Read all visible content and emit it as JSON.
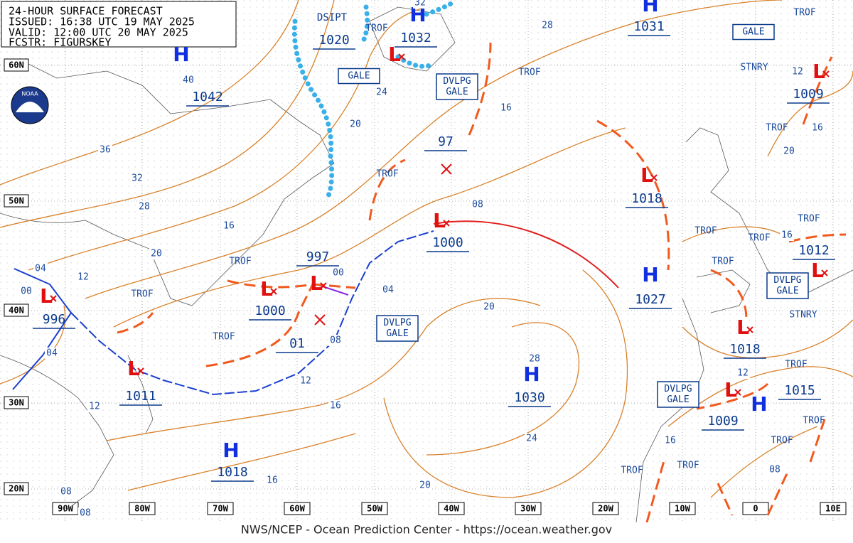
{
  "header": {
    "lines": [
      "24-HOUR SURFACE FORECAST",
      "ISSUED: 16:38 UTC 19 MAY 2025",
      "VALID: 12:00 UTC 20 MAY 2025",
      "FCSTR: FIGURSKEY"
    ]
  },
  "logo": "NOAA",
  "footer": "NWS/NCEP - Ocean Prediction Center - https://ocean.weather.gov",
  "lat_labels": [
    "60N",
    "50N",
    "40N",
    "30N",
    "20N"
  ],
  "lon_labels": [
    "90W",
    "80W",
    "70W",
    "60W",
    "50W",
    "40W",
    "30W",
    "20W",
    "10W",
    "0",
    "10E"
  ],
  "highs": [
    {
      "symbol": "H",
      "pressure": "1042"
    },
    {
      "symbol": "H",
      "pressure": "1032"
    },
    {
      "symbol": "H",
      "pressure": "1031"
    },
    {
      "symbol": "H",
      "pressure": "1027"
    },
    {
      "symbol": "H",
      "pressure": "1030"
    },
    {
      "symbol": "H",
      "pressure": "1018"
    },
    {
      "symbol": "H",
      "pressure": "1015"
    }
  ],
  "lows": [
    {
      "symbol": "L",
      "pressure": "1009"
    },
    {
      "symbol": "L",
      "pressure": "1018"
    },
    {
      "symbol": "L",
      "pressure": "1000"
    },
    {
      "symbol": "L",
      "pressure": "1000"
    },
    {
      "symbol": "L",
      "pressure": "997"
    },
    {
      "symbol": "L",
      "pressure": "996"
    },
    {
      "symbol": "L",
      "pressure": "1011"
    },
    {
      "symbol": "L",
      "pressure": "1018"
    },
    {
      "symbol": "L",
      "pressure": "1009"
    },
    {
      "symbol": "L",
      "pressure": "1012"
    }
  ],
  "unnumbered_lows": [
    "L"
  ],
  "dissipating": {
    "status": "DSIPT",
    "pressure": "1020"
  },
  "developing_lows": [
    {
      "pressure": "97"
    },
    {
      "pressure": "01"
    }
  ],
  "isobar_labels": [
    "40",
    "36",
    "32",
    "28",
    "20",
    "16",
    "12",
    "04",
    "00",
    "04",
    "12",
    "08",
    "08",
    "16",
    "20",
    "24",
    "16",
    "12",
    "08",
    "04",
    "20",
    "28",
    "08",
    "20",
    "24",
    "16",
    "28",
    "32",
    "00",
    "16",
    "20",
    "16",
    "12",
    "12",
    "16",
    "08"
  ],
  "annotations": [
    "TROF",
    "TROF",
    "TROF",
    "TROF",
    "TROF",
    "TROF",
    "TROF",
    "TROF",
    "TROF",
    "TROF",
    "TROF",
    "TROF",
    "TROF",
    "TROF",
    "TROF",
    "TROF",
    "TROF",
    "STNRY",
    "STNRY"
  ],
  "boxes": [
    [
      "GALE"
    ],
    [
      "DVLPG",
      "GALE"
    ],
    [
      "GALE"
    ],
    [
      "DVLPG",
      "GALE"
    ],
    [
      "DVLPG",
      "GALE"
    ],
    [
      "DVLPG",
      "GALE"
    ]
  ]
}
